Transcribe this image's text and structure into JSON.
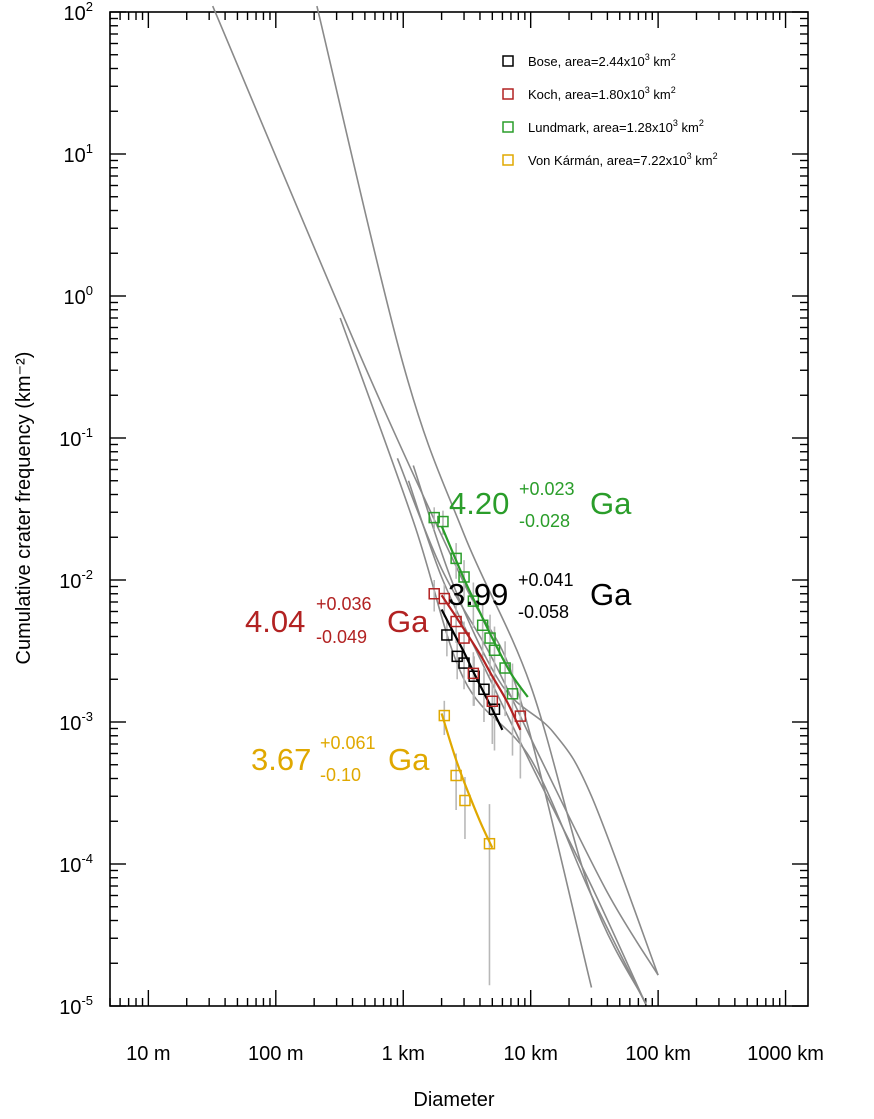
{
  "chart_data": {
    "type": "scatter",
    "title": "",
    "xlabel": "Diameter",
    "ylabel": "Cumulative crater frequency (km⁻²)",
    "x_scale": "log",
    "y_scale": "log",
    "x_range_km": [
      0.005,
      1500
    ],
    "y_range": [
      1e-05,
      100
    ],
    "x_ticks": [
      {
        "value_km": 0.01,
        "label": "10 m"
      },
      {
        "value_km": 0.1,
        "label": "100 m"
      },
      {
        "value_km": 1,
        "label": "1 km"
      },
      {
        "value_km": 10,
        "label": "10 km"
      },
      {
        "value_km": 100,
        "label": "100 km"
      },
      {
        "value_km": 1000,
        "label": "1000 km"
      }
    ],
    "y_ticks": [
      {
        "value": 100,
        "base": "10",
        "exp": "2"
      },
      {
        "value": 10,
        "base": "10",
        "exp": "1"
      },
      {
        "value": 1,
        "base": "10",
        "exp": "0"
      },
      {
        "value": 0.1,
        "base": "10",
        "exp": "-1"
      },
      {
        "value": 0.01,
        "base": "10",
        "exp": "-2"
      },
      {
        "value": 0.001,
        "base": "10",
        "exp": "-3"
      },
      {
        "value": 0.0001,
        "base": "10",
        "exp": "-4"
      },
      {
        "value": 1e-05,
        "base": "10",
        "exp": "-5"
      }
    ],
    "grid": false,
    "legend_position": "top-right",
    "series": [
      {
        "name": "Bose",
        "legend_label": "Bose, area=2.44x10",
        "legend_exp": "3",
        "legend_unit": " km",
        "legend_unit_exp": "2",
        "color": "#000000",
        "x": [
          2.2,
          2.65,
          3.0,
          3.6,
          4.3,
          5.2
        ],
        "y": [
          0.0041,
          0.0029,
          0.0026,
          0.0021,
          0.0017,
          0.00123
        ],
        "error": [
          0.0012,
          0.0009,
          0.0009,
          0.0008,
          0.0007,
          0.0006
        ],
        "fit_x": [
          2.0,
          2.5,
          3.0,
          3.6,
          4.3,
          5.0,
          6.0
        ],
        "fit_y": [
          0.0062,
          0.0042,
          0.0031,
          0.0022,
          0.0016,
          0.00123,
          0.00088
        ],
        "age": {
          "value": "3.99",
          "plus": "+0.041",
          "minus": "-0.058",
          "unit": "Ga"
        }
      },
      {
        "name": "Koch",
        "legend_label": "Koch, area=1.80x10",
        "legend_exp": "3",
        "legend_unit": " km",
        "legend_unit_exp": "2",
        "color": "#b22222",
        "x": [
          1.75,
          2.1,
          2.6,
          3.0,
          3.55,
          5.0,
          8.3
        ],
        "y": [
          0.008,
          0.0074,
          0.0051,
          0.0039,
          0.0022,
          0.0014,
          0.0011
        ],
        "error": [
          0.002,
          0.0019,
          0.0015,
          0.0012,
          0.0009,
          0.0007,
          0.0007
        ],
        "fit_x": [
          2.0,
          2.5,
          3.0,
          4.0,
          5.0,
          6.5,
          8.3
        ],
        "fit_y": [
          0.0078,
          0.0058,
          0.0045,
          0.003,
          0.0021,
          0.0014,
          0.00088
        ],
        "age": {
          "value": "4.04",
          "plus": "+0.036",
          "minus": "-0.049",
          "unit": "Ga"
        }
      },
      {
        "name": "Lundmark",
        "legend_label": "Lundmark, area=1.28x10",
        "legend_exp": "3",
        "legend_unit": " km",
        "legend_unit_exp": "2",
        "color": "#2a9d2a",
        "x": [
          1.75,
          2.05,
          2.6,
          3.0,
          3.55,
          4.2,
          4.8,
          5.2,
          6.3,
          7.2
        ],
        "y": [
          0.0275,
          0.0258,
          0.0142,
          0.0105,
          0.0071,
          0.0048,
          0.0039,
          0.0032,
          0.0024,
          0.00158
        ],
        "error": [
          0.005,
          0.005,
          0.004,
          0.0033,
          0.0025,
          0.002,
          0.0018,
          0.0015,
          0.0013,
          0.001
        ],
        "fit_x": [
          2.0,
          3.0,
          4.0,
          5.0,
          7.0,
          9.5
        ],
        "fit_y": [
          0.024,
          0.0102,
          0.0059,
          0.0039,
          0.0022,
          0.0015
        ],
        "age": {
          "value": "4.20",
          "plus": "+0.023",
          "minus": "-0.028",
          "unit": "Ga"
        }
      },
      {
        "name": "Von Kármán",
        "legend_label": "Von Kármán, area=7.22x10",
        "legend_exp": "3",
        "legend_unit": " km",
        "legend_unit_exp": "2",
        "color": "#e0a800",
        "x": [
          2.1,
          2.6,
          3.05,
          4.75
        ],
        "y": [
          0.00111,
          0.00042,
          0.00028,
          0.000139
        ],
        "error": [
          0.0003,
          0.00018,
          0.00013,
          0.000125
        ],
        "fit_x": [
          2.0,
          2.5,
          3.0,
          4.0,
          5.0
        ],
        "fit_y": [
          0.00115,
          0.0006,
          0.00038,
          0.0002,
          0.00013
        ],
        "age": {
          "value": "3.67",
          "plus": "+0.061",
          "minus": "-0.10",
          "unit": "Ga"
        }
      }
    ],
    "isochrons": [
      {
        "x": [
          0.032,
          0.5,
          3,
          8,
          30
        ],
        "y": [
          110,
          0.32,
          0.0095,
          0.0016,
          1.35e-05
        ]
      },
      {
        "x": [
          0.21,
          1,
          3,
          10,
          30,
          80
        ],
        "y": [
          110,
          0.33,
          0.021,
          0.0018,
          6e-05,
          1.05e-05
        ]
      },
      {
        "x": [
          0.32,
          1.2,
          3,
          10,
          30,
          80
        ],
        "y": [
          0.7,
          0.026,
          0.002,
          0.00055,
          6e-05,
          1.03e-05
        ]
      },
      {
        "x": [
          0.9,
          2,
          5,
          12,
          40,
          100
        ],
        "y": [
          0.072,
          0.012,
          0.0028,
          0.00055,
          6.3e-05,
          1.65e-05
        ]
      },
      {
        "x": [
          1.1,
          2,
          4,
          10,
          30,
          80
        ],
        "y": [
          0.05,
          0.0105,
          0.0028,
          0.00051,
          7e-05,
          1.03e-05
        ]
      },
      {
        "x": [
          1.2,
          2.5,
          6,
          15,
          30,
          100
        ],
        "y": [
          0.064,
          0.009,
          0.0018,
          0.00085,
          0.0003,
          1.65e-05
        ]
      }
    ]
  }
}
